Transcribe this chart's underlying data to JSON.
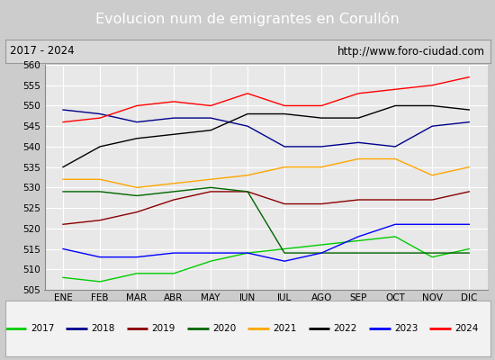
{
  "title": "Evolucion num de emigrantes en Corullón",
  "subtitle_left": "2017 - 2024",
  "subtitle_right": "http://www.foro-ciudad.com",
  "x_labels": [
    "ENE",
    "FEB",
    "MAR",
    "ABR",
    "MAY",
    "JUN",
    "JUL",
    "AGO",
    "SEP",
    "OCT",
    "NOV",
    "DIC"
  ],
  "ylim": [
    505,
    560
  ],
  "yticks": [
    505,
    510,
    515,
    520,
    525,
    530,
    535,
    540,
    545,
    550,
    555,
    560
  ],
  "series": {
    "2017": {
      "color": "#00cc00",
      "values": [
        508,
        507,
        509,
        509,
        512,
        514,
        515,
        516,
        517,
        518,
        513,
        515
      ]
    },
    "2018": {
      "color": "#00008B",
      "values": [
        549,
        548,
        546,
        547,
        547,
        545,
        540,
        540,
        541,
        540,
        545,
        546
      ]
    },
    "2019": {
      "color": "#8B0000",
      "values": [
        521,
        522,
        524,
        527,
        529,
        529,
        526,
        526,
        527,
        527,
        527,
        529
      ]
    },
    "2020": {
      "color": "#006400",
      "values": [
        529,
        529,
        528,
        529,
        530,
        529,
        514,
        514,
        514,
        514,
        514,
        514
      ]
    },
    "2021": {
      "color": "#FFA500",
      "values": [
        532,
        532,
        530,
        531,
        532,
        533,
        535,
        535,
        537,
        537,
        533,
        535
      ]
    },
    "2022": {
      "color": "#000000",
      "values": [
        535,
        540,
        542,
        543,
        544,
        548,
        548,
        547,
        547,
        550,
        550,
        549
      ]
    },
    "2023": {
      "color": "#0000FF",
      "values": [
        515,
        513,
        513,
        514,
        514,
        514,
        512,
        514,
        518,
        521,
        521,
        521
      ]
    },
    "2024": {
      "color": "#FF0000",
      "values": [
        546,
        547,
        550,
        551,
        550,
        553,
        550,
        550,
        553,
        554,
        555,
        557
      ]
    }
  },
  "title_bg_color": "#4C8EC2",
  "title_font_color": "white",
  "plot_bg_color": "#E8E8E8",
  "subtitle_bg_color": "#D8D8D8",
  "subtitle_border_color": "#999999",
  "legend_bg_color": "#F2F2F2",
  "grid_color": "#FFFFFF"
}
